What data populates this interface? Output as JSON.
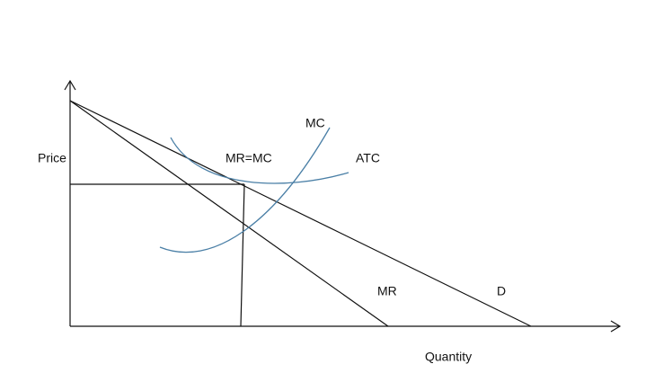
{
  "axes": {
    "y_label": "Price",
    "x_label": "Quantity"
  },
  "curves": {
    "mc": "MC",
    "atc": "ATC",
    "mr": "MR",
    "demand": "D"
  },
  "annotations": {
    "equilibrium": "MR=MC"
  }
}
